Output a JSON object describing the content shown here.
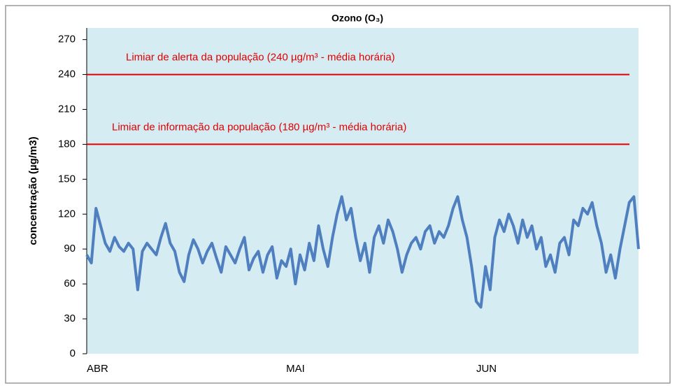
{
  "chart_data": {
    "type": "line",
    "title": "Ozono (O₃)",
    "y_label": "concentração  (µg/m3)",
    "categories": [
      "ABR",
      null,
      null,
      null,
      null,
      null,
      null,
      null,
      null,
      null,
      null,
      null,
      null,
      null,
      null,
      null,
      null,
      null,
      null,
      null,
      null,
      null,
      null,
      null,
      null,
      null,
      null,
      null,
      null,
      null,
      null,
      null,
      null,
      null,
      null,
      null,
      null,
      null,
      null,
      null,
      null,
      null,
      null,
      "MAI",
      null,
      null,
      null,
      null,
      null,
      null,
      null,
      null,
      null,
      null,
      null,
      null,
      null,
      null,
      null,
      null,
      null,
      null,
      null,
      null,
      null,
      null,
      null,
      null,
      null,
      null,
      null,
      null,
      null,
      null,
      null,
      null,
      null,
      null,
      null,
      null,
      null,
      null,
      null,
      null,
      "JUN",
      null,
      null,
      null,
      null,
      null,
      null,
      null,
      null,
      null,
      null,
      null,
      null,
      null,
      null,
      null,
      null,
      null,
      null,
      null,
      null,
      null,
      null,
      null,
      null,
      null,
      null,
      null,
      null,
      null,
      null,
      null,
      null,
      null,
      null,
      null
    ],
    "series": [
      {
        "color": "#4f7fbf",
        "values": [
          85,
          78,
          125,
          110,
          95,
          88,
          100,
          92,
          88,
          95,
          90,
          55,
          88,
          95,
          90,
          85,
          100,
          112,
          95,
          88,
          70,
          62,
          85,
          98,
          90,
          78,
          88,
          95,
          82,
          70,
          92,
          85,
          78,
          90,
          100,
          72,
          82,
          88,
          70,
          85,
          92,
          65,
          80,
          75,
          90,
          60,
          85,
          72,
          95,
          80,
          110,
          90,
          75,
          100,
          120,
          135,
          115,
          125,
          100,
          80,
          95,
          70,
          100,
          110,
          95,
          115,
          105,
          90,
          70,
          85,
          95,
          100,
          90,
          105,
          110,
          95,
          105,
          100,
          110,
          125,
          135,
          115,
          100,
          75,
          45,
          40,
          75,
          55,
          100,
          115,
          105,
          120,
          110,
          95,
          115,
          100,
          110,
          90,
          100,
          75,
          85,
          70,
          95,
          100,
          85,
          115,
          110,
          125,
          120,
          130,
          110,
          95,
          70,
          85,
          65,
          90,
          110,
          130,
          135,
          90
        ]
      }
    ],
    "reference_lines": [
      {
        "value": 240,
        "label": "Limiar de alerta da população (240 µg/m³ - média horária)",
        "color": "#e00000"
      },
      {
        "value": 180,
        "label": "Limiar de informação da população (180 µg/m³ - média horária)",
        "color": "#e00000"
      }
    ],
    "ylim": [
      0,
      280
    ],
    "yticks": [
      0,
      30,
      60,
      90,
      120,
      150,
      180,
      210,
      240,
      270
    ],
    "plot_background": "#d5ecf3"
  }
}
